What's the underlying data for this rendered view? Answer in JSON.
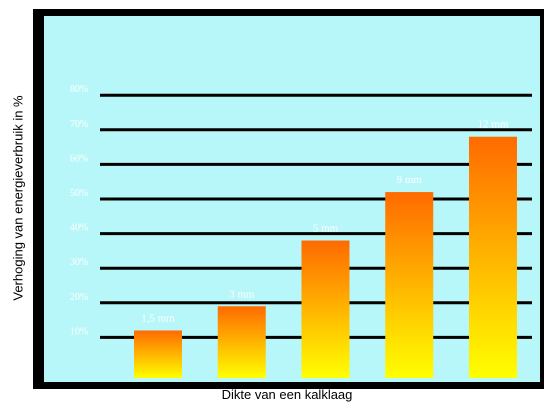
{
  "chart_data": {
    "type": "bar",
    "title": "",
    "xlabel": "Dikte van een kalklaag",
    "ylabel": "Verhoging van energieverbruik in %",
    "categories": [
      "1,5 mm",
      "3 mm",
      "5 mm",
      "9 mm",
      "12 mm"
    ],
    "values": [
      12,
      19,
      38,
      52,
      68
    ],
    "data_labels": [
      "1,5 mm",
      "3 mm",
      "5 mm",
      "9 mm",
      "12 mm"
    ],
    "yticks": [
      10,
      20,
      30,
      40,
      50,
      60,
      70,
      80
    ],
    "ytick_labels": [
      "10%",
      "20%",
      "30%",
      "40%",
      "50%",
      "60%",
      "70%",
      "80%"
    ],
    "ylim": [
      0,
      85
    ],
    "grid": true,
    "legend": "none",
    "colors": {
      "background": "#b7f7f9",
      "frame": "#000000",
      "gridline": "#000000",
      "bar_top": "#ff6a00",
      "bar_bottom": "#ffff00",
      "label_text": "#ffffff"
    }
  }
}
